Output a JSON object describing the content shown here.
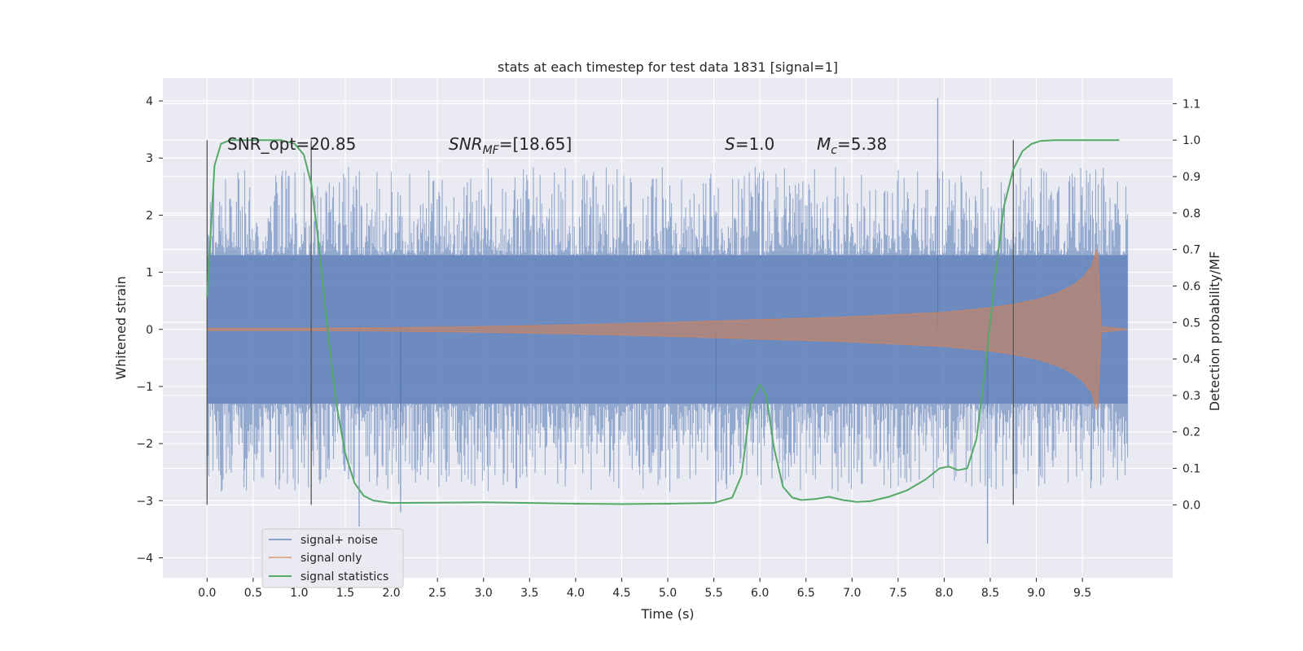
{
  "chart_data": {
    "type": "line",
    "title": "stats at each timestep for test data 1831 [signal=1]",
    "xlabel": "Time (s)",
    "ylabel": "Whitened strain",
    "y2label": "Detection probability/MF",
    "xlim": [
      -0.48,
      10.48
    ],
    "ylim": [
      -4.35,
      4.4
    ],
    "y2lim": [
      -0.2,
      1.17
    ],
    "xticks": [
      "0.0",
      "0.5",
      "1.0",
      "1.5",
      "2.0",
      "2.5",
      "3.0",
      "3.5",
      "4.0",
      "4.5",
      "5.0",
      "5.5",
      "6.0",
      "6.5",
      "7.0",
      "7.5",
      "8.0",
      "8.5",
      "9.0",
      "9.5"
    ],
    "yticks": [
      "−4",
      "−3",
      "−2",
      "−1",
      "0",
      "1",
      "2",
      "3",
      "4"
    ],
    "y2ticks": [
      "0.0",
      "0.1",
      "0.2",
      "0.3",
      "0.4",
      "0.5",
      "0.6",
      "0.7",
      "0.8",
      "0.9",
      "1.0",
      "1.1"
    ],
    "grid": true,
    "legend_position": "lower-left",
    "annotations": {
      "snr_opt": "SNR_opt=20.85",
      "snr_mf_sym": "SNR",
      "snr_mf_sub": "MF",
      "snr_mf_val": "=[18.65]",
      "s_sym": "S",
      "s_val": "=1.0",
      "mc_sym": "M",
      "mc_sub": "c",
      "mc_val": "=5.38"
    },
    "vlines": [
      0.0,
      1.13,
      8.75
    ],
    "series": [
      {
        "name": "signal+ noise",
        "color": "#4c72b0",
        "style": "noise-band",
        "x_range": [
          0.0,
          9.99
        ],
        "typical_amplitude": 1.3,
        "peak_max": 4.05,
        "peak_min": -3.75
      },
      {
        "name": "signal only",
        "color": "#dd8452",
        "style": "chirp-envelope",
        "x_range": [
          0.0,
          9.99
        ],
        "envelope": {
          "x": [
            0.0,
            1.0,
            2.0,
            3.0,
            4.0,
            5.0,
            6.0,
            7.0,
            7.5,
            8.0,
            8.5,
            8.75,
            9.0,
            9.25,
            9.4,
            9.5,
            9.6,
            9.65,
            9.67,
            9.7,
            9.99
          ],
          "y": [
            0.02,
            0.02,
            0.03,
            0.05,
            0.08,
            0.12,
            0.17,
            0.22,
            0.26,
            0.3,
            0.38,
            0.44,
            0.52,
            0.65,
            0.78,
            0.9,
            1.1,
            1.4,
            1.3,
            0.05,
            0.0
          ]
        }
      },
      {
        "name": "signal statistics",
        "color": "#55a868",
        "style": "line",
        "axis": "right",
        "x": [
          0.0,
          0.08,
          0.15,
          0.25,
          0.4,
          0.6,
          0.8,
          0.95,
          1.05,
          1.13,
          1.2,
          1.3,
          1.4,
          1.5,
          1.6,
          1.7,
          1.8,
          2.0,
          2.5,
          3.0,
          3.5,
          4.0,
          4.5,
          5.0,
          5.5,
          5.7,
          5.8,
          5.9,
          6.0,
          6.07,
          6.15,
          6.25,
          6.35,
          6.45,
          6.6,
          6.75,
          6.9,
          7.05,
          7.2,
          7.4,
          7.6,
          7.8,
          7.95,
          8.05,
          8.15,
          8.25,
          8.35,
          8.45,
          8.55,
          8.65,
          8.75,
          8.85,
          8.95,
          9.05,
          9.2,
          9.4,
          9.6,
          9.9
        ],
        "y": [
          0.57,
          0.93,
          0.99,
          1.0,
          1.0,
          1.0,
          1.0,
          0.99,
          0.96,
          0.88,
          0.74,
          0.5,
          0.28,
          0.14,
          0.06,
          0.025,
          0.012,
          0.005,
          0.006,
          0.007,
          0.005,
          0.003,
          0.002,
          0.003,
          0.005,
          0.02,
          0.08,
          0.28,
          0.33,
          0.3,
          0.16,
          0.05,
          0.02,
          0.013,
          0.016,
          0.022,
          0.013,
          0.008,
          0.01,
          0.022,
          0.04,
          0.07,
          0.1,
          0.105,
          0.095,
          0.1,
          0.18,
          0.38,
          0.62,
          0.82,
          0.92,
          0.97,
          0.99,
          0.998,
          1.0,
          1.0,
          1.0,
          1.0
        ]
      }
    ]
  }
}
